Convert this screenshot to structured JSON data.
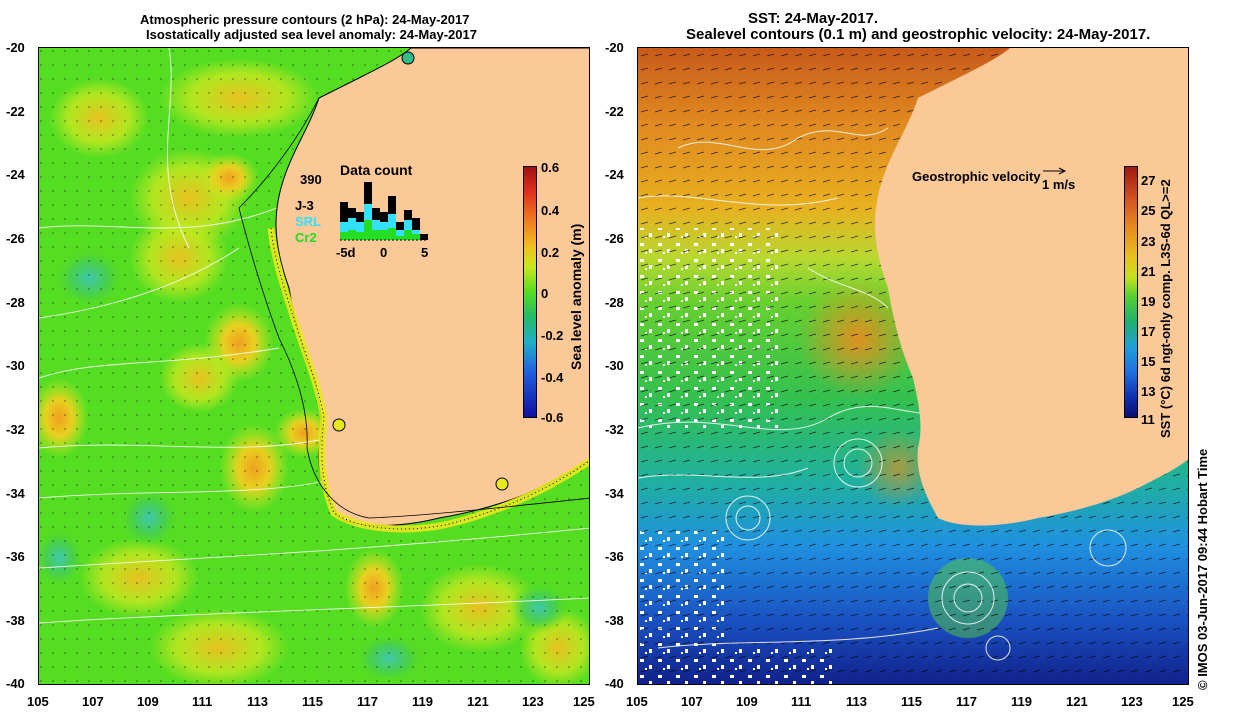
{
  "left": {
    "title_line1": "Atmospheric pressure contours (2 hPa): 24-May-2017",
    "title_line2": "Isostatically adjusted sea level anomaly: 24-May-2017",
    "colorbar_label": "Sea level anomaly (m)",
    "colorbar_ticks": [
      "0.6",
      "0.4",
      "0.2",
      "0",
      "-0.2",
      "-0.4",
      "-0.6"
    ],
    "data_count": {
      "title": "Data count",
      "total": "390",
      "legend": [
        "J-3",
        "SRL",
        "Cr2"
      ],
      "axis_ticks": [
        "-5d",
        "0",
        "5"
      ],
      "colors": {
        "J-3": "#000000",
        "SRL": "#33e0ff",
        "Cr2": "#22dd22"
      }
    }
  },
  "right": {
    "title_line1": "SST: 24-May-2017.",
    "title_line2": "Sealevel contours (0.1 m) and geostrophic velocity: 24-May-2017.",
    "velocity_label": "Geostrophic velocity",
    "velocity_scale": "1 m/s",
    "colorbar_label": "SST (°C) 6d ngt-only comp. L3S-6d QL>=2",
    "colorbar_ticks": [
      "27",
      "25",
      "23",
      "21",
      "19",
      "17",
      "15",
      "13",
      "11"
    ],
    "credit": "©  IMOS 03-Jun-2017 09:44 Hobart Time"
  },
  "axes": {
    "y_ticks": [
      "-20",
      "-22",
      "-24",
      "-26",
      "-28",
      "-30",
      "-32",
      "-34",
      "-36",
      "-38",
      "-40"
    ],
    "x_ticks": [
      "105",
      "107",
      "109",
      "111",
      "113",
      "115",
      "117",
      "119",
      "121",
      "123",
      "125"
    ]
  },
  "colors": {
    "land": "#fbc898",
    "ocean_green": "#55dd22",
    "ocean_yellow": "#c8e820",
    "sst_warm": "#d86a1a",
    "sst_cold": "#1a3ab0"
  }
}
